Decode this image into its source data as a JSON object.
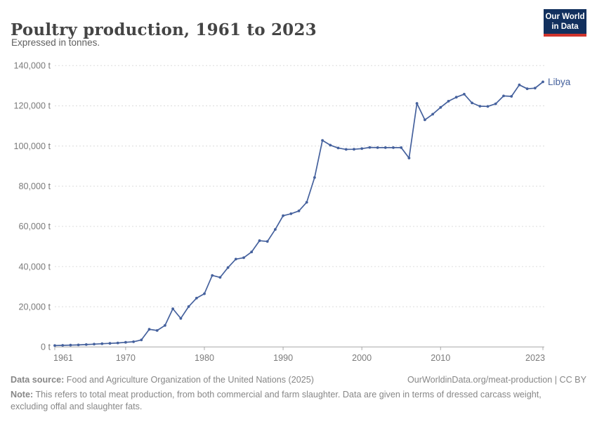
{
  "header": {
    "title": "Poultry production, 1961 to 2023",
    "subtitle": "Expressed in tonnes."
  },
  "logo": {
    "line1": "Our World",
    "line2": "in Data"
  },
  "footer": {
    "data_source_label": "Data source:",
    "data_source_text": " Food and Agriculture Organization of the United Nations (2025)",
    "credit": "OurWorldinData.org/meat-production | CC BY",
    "note_label": "Note:",
    "note_text": " This refers to total meat production, from both commercial and farm slaughter. Data are given in terms of dressed carcass weight, excluding offal and slaughter fats."
  },
  "colors": {
    "line": "#45619d",
    "entity_label": "#45619d",
    "grid": "#dcdcdc",
    "axis": "#a8a8a8",
    "tick_text": "#7b7b7b",
    "logo_bg": "#12305e",
    "logo_bar": "#d0342c"
  },
  "chart_data": {
    "type": "line",
    "title": "Poultry production, 1961 to 2023",
    "subtitle": "Expressed in tonnes.",
    "xlabel": "",
    "ylabel": "tonnes",
    "unit": "t",
    "grid": true,
    "legend_position": "end-of-line",
    "xlim": [
      1961,
      2023
    ],
    "ylim": [
      0,
      140000
    ],
    "x_ticks": [
      {
        "v": 1961,
        "label": "1961"
      },
      {
        "v": 1970,
        "label": "1970"
      },
      {
        "v": 1980,
        "label": "1980"
      },
      {
        "v": 1990,
        "label": "1990"
      },
      {
        "v": 2000,
        "label": "2000"
      },
      {
        "v": 2010,
        "label": "2010"
      },
      {
        "v": 2023,
        "label": "2023"
      }
    ],
    "y_ticks": [
      {
        "v": 0,
        "label": "0 t"
      },
      {
        "v": 20000,
        "label": "20,000 t"
      },
      {
        "v": 40000,
        "label": "40,000 t"
      },
      {
        "v": 60000,
        "label": "60,000 t"
      },
      {
        "v": 80000,
        "label": "80,000 t"
      },
      {
        "v": 100000,
        "label": "100,000 t"
      },
      {
        "v": 120000,
        "label": "120,000 t"
      },
      {
        "v": 140000,
        "label": "140,000 t"
      }
    ],
    "x": [
      1961,
      1962,
      1963,
      1964,
      1965,
      1966,
      1967,
      1968,
      1969,
      1970,
      1971,
      1972,
      1973,
      1974,
      1975,
      1976,
      1977,
      1978,
      1979,
      1980,
      1981,
      1982,
      1983,
      1984,
      1985,
      1986,
      1987,
      1988,
      1989,
      1990,
      1991,
      1992,
      1993,
      1994,
      1995,
      1996,
      1997,
      1998,
      1999,
      2000,
      2001,
      2002,
      2003,
      2004,
      2005,
      2006,
      2007,
      2008,
      2009,
      2010,
      2011,
      2012,
      2013,
      2014,
      2015,
      2016,
      2017,
      2018,
      2019,
      2020,
      2021,
      2022,
      2023
    ],
    "series": [
      {
        "name": "Libya",
        "color": "#45619d",
        "values": [
          700,
          800,
          900,
          1000,
          1200,
          1400,
          1600,
          1800,
          2000,
          2300,
          2600,
          3500,
          8800,
          8200,
          10700,
          19000,
          14200,
          20100,
          24300,
          26500,
          35600,
          34600,
          39500,
          43700,
          44400,
          47300,
          52900,
          52500,
          58500,
          65300,
          66300,
          67700,
          72000,
          84300,
          102800,
          100400,
          99000,
          98300,
          98400,
          98700,
          99300,
          99200,
          99200,
          99200,
          99200,
          94000,
          121200,
          113000,
          115800,
          119200,
          122300,
          124300,
          125800,
          121400,
          119800,
          119700,
          121000,
          124900,
          124700,
          130400,
          128500,
          128800,
          131900
        ]
      }
    ]
  }
}
